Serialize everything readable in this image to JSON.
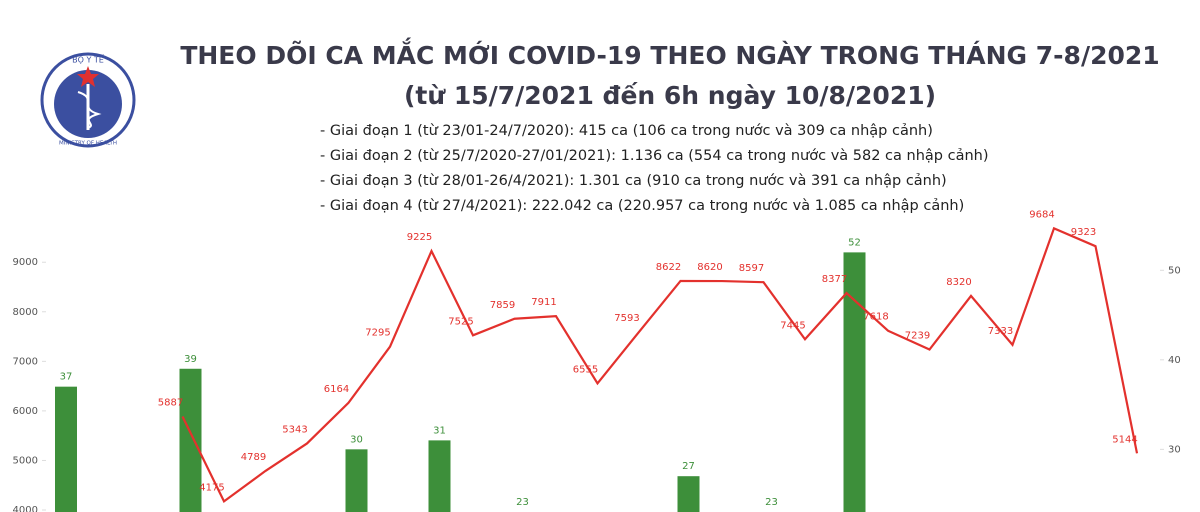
{
  "logo": {
    "top": "BỘ Y TẾ",
    "bottom": "MINISTRY OF HEALTH"
  },
  "chart_data": {
    "type": "combo",
    "title": "THEO DÕI CA MẮC MỚI COVID-19 THEO NGÀY TRONG THÁNG 7-8/2021",
    "subtitle": "(từ 15/7/2021 đến 6h ngày 10/8/2021)",
    "annotations": [
      "- Giai đoạn 1 (từ 23/01-24/7/2020): 415 ca (106 ca trong nước và 309 ca nhập cảnh)",
      "- Giai đoạn 2 (từ 25/7/2020-27/01/2021): 1.136 ca (554 ca trong nước và 582 ca nhập cảnh)",
      "- Giai đoạn 3 (từ 28/01-26/4/2021): 1.301 ca (910 ca trong nước và 391 ca nhập cảnh)",
      "- Giai đoạn 4 (từ 27/4/2021): 222.042 ca (220.957 ca trong nước và 1.085 ca nhập cảnh)"
    ],
    "categories": [
      null,
      null,
      null,
      null,
      null,
      null,
      null,
      null,
      null,
      null,
      null,
      null,
      null,
      null,
      null,
      null,
      null,
      null,
      null,
      null,
      null,
      null,
      null,
      null,
      null,
      null,
      null
    ],
    "ylim": [
      3960,
      9650
    ],
    "yticks": [
      4000,
      5000,
      6000,
      7000,
      8000,
      9000
    ],
    "y2lim": [
      23,
      54.5
    ],
    "y2ticks": [
      30,
      40,
      50
    ],
    "series": [
      {
        "type": "bar",
        "axis": "y2",
        "color": "#3d8f3a",
        "values": [
          37,
          null,
          null,
          39,
          null,
          null,
          null,
          30,
          null,
          31,
          null,
          23,
          null,
          null,
          null,
          27,
          null,
          23,
          null,
          52,
          null,
          null,
          null,
          null,
          null,
          null,
          null
        ]
      },
      {
        "type": "line",
        "color": "#e3312d",
        "values": [
          null,
          null,
          null,
          5887,
          4175,
          4789,
          5343,
          6164,
          7295,
          9225,
          7525,
          7859,
          7911,
          6555,
          7593,
          8622,
          8620,
          8597,
          7445,
          8377,
          7618,
          7239,
          8320,
          7333,
          9684,
          9323,
          5144
        ]
      }
    ]
  }
}
